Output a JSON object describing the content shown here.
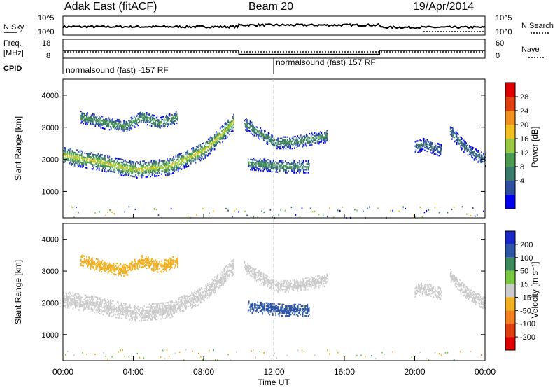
{
  "header": {
    "station": "Adak East (fitACF)",
    "beam": "Beam 20",
    "date": "19/Apr/2014"
  },
  "noise_panel": {
    "left_label": "N.Sky",
    "right_label": "N.Search",
    "left_ticks": [
      "10^5",
      "10^0"
    ],
    "right_ticks": [
      "10^5",
      "10^0"
    ]
  },
  "freq_panel": {
    "left_label_line1": "Freq.",
    "left_label_line2": "[MHz]",
    "right_label": "Nave",
    "left_ticks": [
      "18",
      "8"
    ],
    "right_ticks": [
      "60",
      "0"
    ]
  },
  "cpid_panel": {
    "label": "CPID",
    "program_1": "normalsound (fast) -157 RF",
    "program_2": "normalsound (fast) 157 RF"
  },
  "power_panel": {
    "ylabel": "Slant Range [km]",
    "yticks": [
      "4000",
      "3000",
      "2000",
      "1000"
    ],
    "colorbar_label": "Power [dB]",
    "colorbar_ticks": [
      "28",
      "24",
      "20",
      "16",
      "12",
      "8",
      "4"
    ],
    "colors": [
      "#0000ee",
      "#2e4fa0",
      "#3a7a6a",
      "#4a9a50",
      "#9ac840",
      "#f0c020",
      "#f09020",
      "#e04010",
      "#dd0000"
    ]
  },
  "velocity_panel": {
    "ylabel": "Slant Range [km]",
    "yticks": [
      "4000",
      "3000",
      "2000",
      "1000"
    ],
    "colorbar_label": "Velocity [m s⁻¹]",
    "colorbar_ticks": [
      "200",
      "100",
      "50",
      "15",
      "-15",
      "-50",
      "-100",
      "-200"
    ],
    "colors": [
      "#1a28c8",
      "#2e56a8",
      "#3a8a5a",
      "#7ac840",
      "#cccccc",
      "#f0b020",
      "#f08020",
      "#e04010",
      "#dd0000"
    ]
  },
  "time_axis": {
    "ticks": [
      "00:00",
      "04:00",
      "08:00",
      "12:00",
      "16:00",
      "20:00",
      "00:00"
    ],
    "label": "Time UT"
  },
  "chart_data": {
    "type": "heatmap",
    "title": "Adak East (fitACF) Beam 20 19/Apr/2014",
    "xlabel": "Time UT",
    "ylabel": "Slant Range [km]",
    "xlim": [
      0,
      24
    ],
    "ylim": [
      180,
      4500
    ],
    "noise_sky_level": [
      [
        0,
        1.3
      ],
      [
        10,
        1.3
      ],
      [
        10,
        1.6
      ],
      [
        18,
        1.6
      ],
      [
        18,
        1.2
      ],
      [
        24,
        1.2
      ]
    ],
    "frequency_mhz": [
      [
        0,
        13
      ],
      [
        10,
        13
      ],
      [
        10,
        10.5
      ],
      [
        18,
        10.5
      ],
      [
        18,
        13
      ],
      [
        24,
        13
      ]
    ],
    "cpid_segments": [
      {
        "start": 0,
        "end": 12,
        "program": "normalsound (fast) -157 RF"
      },
      {
        "start": 12,
        "end": 24,
        "program": "normalsound (fast) 157 RF"
      }
    ],
    "power_db_range": [
      0,
      30
    ],
    "velocity_range": [
      -200,
      200
    ],
    "echo_bands": [
      {
        "name": "main",
        "t": [
          0,
          2,
          4,
          6,
          8,
          9,
          9.7
        ],
        "range_km": [
          2150,
          1950,
          1700,
          1800,
          2300,
          2800,
          3200
        ],
        "power_db": 15,
        "velocity": 0
      },
      {
        "name": "upper",
        "t": [
          1,
          2.5,
          3.5,
          4.5,
          5.5,
          6.5
        ],
        "range_km": [
          3350,
          3150,
          3050,
          3350,
          3150,
          3350
        ],
        "power_db": 10,
        "velocity": -30
      },
      {
        "name": "post-midnight",
        "t": [
          10.3,
          11,
          12,
          13,
          14,
          15
        ],
        "range_km": [
          3150,
          2900,
          2550,
          2550,
          2650,
          2750
        ],
        "power_db": 9,
        "velocity": 0
      },
      {
        "name": "near-range",
        "t": [
          10.5,
          11.5,
          12.5,
          14
        ],
        "range_km": [
          1900,
          1850,
          1800,
          1800
        ],
        "power_db": 9,
        "velocity": 120
      },
      {
        "name": "late-1",
        "t": [
          20,
          20.5,
          21.5
        ],
        "range_km": [
          2400,
          2500,
          2300
        ],
        "power_db": 6,
        "velocity": 0
      },
      {
        "name": "late-2",
        "t": [
          22,
          23,
          24
        ],
        "range_km": [
          2900,
          2300,
          2000
        ],
        "power_db": 6,
        "velocity": 0
      }
    ]
  }
}
